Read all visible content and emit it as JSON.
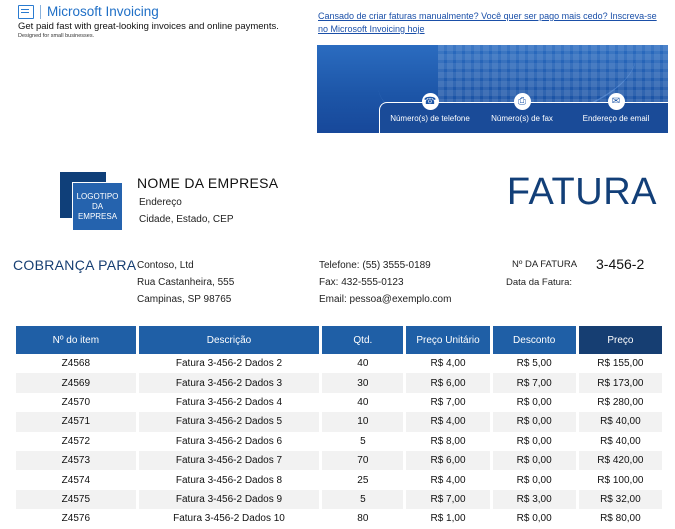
{
  "brand": {
    "name": "Microsoft Invoicing",
    "tagline": "Get paid fast with great-looking invoices and online payments.",
    "sub": "Designed for small businesses."
  },
  "promo": {
    "text": "Cansado de criar faturas manualmente? Você quer ser pago mais cedo? Inscreva-se no Microsoft Invoicing hoje"
  },
  "banner": {
    "contacts": [
      {
        "icon": "phone-icon",
        "label": "Número(s) de telefone"
      },
      {
        "icon": "fax-icon",
        "label": "Número(s) de fax"
      },
      {
        "icon": "email-icon",
        "label": "Endereço de email"
      }
    ]
  },
  "company": {
    "logo_text": "LOGOTIPO DA EMPRESA",
    "name": "NOME DA EMPRESA",
    "address": "Endereço",
    "city": "Cidade, Estado, CEP"
  },
  "document_title": "FATURA",
  "billing": {
    "title": "COBRANÇA PARA",
    "name": "Contoso, Ltd",
    "street": "Rua Castanheira, 555",
    "city": "Campinas, SP 98765",
    "phone": "Telefone: (55) 3555-0189",
    "fax": "Fax: 432-555-0123",
    "email": "Email: pessoa@exemplo.com"
  },
  "invoice": {
    "number_label": "Nº DA FATURA",
    "number": "3-456-2",
    "date_label": "Data da Fatura:"
  },
  "table": {
    "headers": [
      "Nº do item",
      "Descrição",
      "Qtd.",
      "Preço Unitário",
      "Desconto",
      "Preço"
    ],
    "rows": [
      [
        "Z4568",
        "Fatura 3-456-2 Dados 2",
        "40",
        "R$ 4,00",
        "R$ 5,00",
        "R$ 155,00"
      ],
      [
        "Z4569",
        "Fatura 3-456-2 Dados 3",
        "30",
        "R$ 6,00",
        "R$ 7,00",
        "R$ 173,00"
      ],
      [
        "Z4570",
        "Fatura 3-456-2 Dados 4",
        "40",
        "R$ 7,00",
        "R$ 0,00",
        "R$ 280,00"
      ],
      [
        "Z4571",
        "Fatura 3-456-2 Dados 5",
        "10",
        "R$ 4,00",
        "R$ 0,00",
        "R$ 40,00"
      ],
      [
        "Z4572",
        "Fatura 3-456-2 Dados 6",
        "5",
        "R$ 8,00",
        "R$ 0,00",
        "R$ 40,00"
      ],
      [
        "Z4573",
        "Fatura 3-456-2 Dados 7",
        "70",
        "R$ 6,00",
        "R$ 0,00",
        "R$ 420,00"
      ],
      [
        "Z4574",
        "Fatura 3-456-2 Dados 8",
        "25",
        "R$ 4,00",
        "R$ 0,00",
        "R$ 100,00"
      ],
      [
        "Z4575",
        "Fatura 3-456-2 Dados 9",
        "5",
        "R$ 7,00",
        "R$ 3,00",
        "R$ 32,00"
      ],
      [
        "Z4576",
        "Fatura 3-456-2 Dados 10",
        "80",
        "R$ 1,00",
        "R$ 0,00",
        "R$ 80,00"
      ]
    ]
  }
}
